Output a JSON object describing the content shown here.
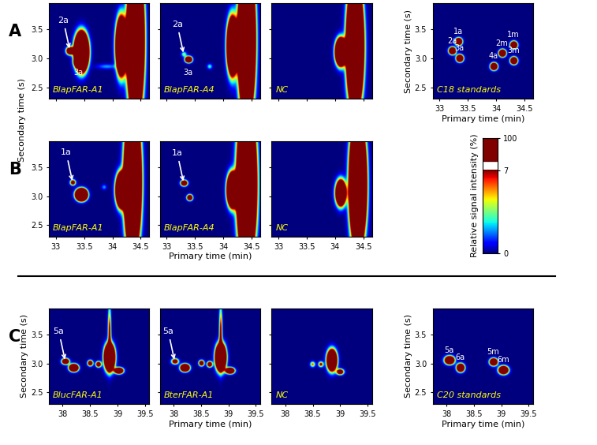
{
  "chart_data": {
    "type": "heatmap",
    "colorbar": {
      "label": "Relative signal intensity (%)",
      "range": [
        0,
        7
      ],
      "ticks": [
        0,
        7,
        100
      ]
    },
    "shared_ylabel": {
      "text": "Secondary time (s)",
      "rows": [
        "A",
        "B"
      ]
    },
    "rows": [
      {
        "label": "A",
        "xlim": [
          32.88,
          34.65
        ],
        "ylim": [
          2.3,
          3.95
        ],
        "xticks": [
          33,
          33.5,
          34,
          34.5
        ],
        "yticks": [
          {
            "value": 2.5,
            "label": "2.5"
          },
          {
            "value": 3,
            "label": "3.0"
          },
          {
            "value": 3.5,
            "label": "3.5"
          }
        ],
        "panels": [
          {
            "label": "BlapFAR-A1",
            "tick_labels": "y",
            "arrows": [
              {
                "text": "2a",
                "x": 33.25,
                "y": 3.13
              }
            ],
            "point_labels": [
              {
                "text": "3a",
                "x": 33.4,
                "y": 2.9
              }
            ],
            "peaks": [
              {
                "x": 33.25,
                "y": 3.12,
                "height": 20,
                "sx": 0.04,
                "sy": 0.04
              },
              {
                "x": 33.45,
                "y": 3.1,
                "height": 100,
                "sx": 0.06,
                "sy": 0.16
              },
              {
                "x": 33.4,
                "y": 2.92,
                "height": 30,
                "sx": 0.04,
                "sy": 0.04
              },
              {
                "x": 33.9,
                "y": 2.85,
                "height": 2,
                "sx": 0.12,
                "sy": 0.03
              },
              {
                "x": 34.15,
                "y": 3.2,
                "height": 60,
                "sx": 0.05,
                "sy": 0.25
              },
              {
                "x": 34.4,
                "y": 3.3,
                "height": 100,
                "sx": 0.07,
                "sy": 0.6
              }
            ]
          },
          {
            "label": "BlapFAR-A4",
            "tick_labels": false,
            "arrows": [
              {
                "text": "2a",
                "x": 33.3,
                "y": 3.06
              }
            ],
            "point_labels": [
              {
                "text": "3a",
                "x": 33.38,
                "y": 2.9
              }
            ],
            "peaks": [
              {
                "x": 33.3,
                "y": 3.06,
                "height": 4,
                "sx": 0.03,
                "sy": 0.03
              },
              {
                "x": 33.38,
                "y": 2.97,
                "height": 30,
                "sx": 0.035,
                "sy": 0.03
              },
              {
                "x": 33.75,
                "y": 2.85,
                "height": 3,
                "sx": 0.03,
                "sy": 0.03
              },
              {
                "x": 34.15,
                "y": 3.2,
                "height": 60,
                "sx": 0.05,
                "sy": 0.25
              },
              {
                "x": 34.4,
                "y": 3.3,
                "height": 100,
                "sx": 0.07,
                "sy": 0.6
              }
            ]
          },
          {
            "label": "NC",
            "tick_labels": false,
            "peaks": [
              {
                "x": 34.1,
                "y": 3.1,
                "height": 60,
                "sx": 0.05,
                "sy": 0.12
              },
              {
                "x": 34.35,
                "y": 3.2,
                "height": 100,
                "sx": 0.07,
                "sy": 0.5
              }
            ]
          },
          {
            "label": "C18 standards",
            "tick_labels": true,
            "xlabel": "Primary time (min)",
            "ylabel": "Secondary time (s)",
            "peaks": [
              {
                "x": 33.33,
                "y": 3.28,
                "height": 30,
                "sx": 0.035,
                "sy": 0.035,
                "label": "1a"
              },
              {
                "x": 33.22,
                "y": 3.12,
                "height": 30,
                "sx": 0.035,
                "sy": 0.035,
                "label": "2a"
              },
              {
                "x": 33.35,
                "y": 2.99,
                "height": 30,
                "sx": 0.035,
                "sy": 0.035,
                "label": "3a"
              },
              {
                "x": 33.95,
                "y": 2.85,
                "height": 30,
                "sx": 0.035,
                "sy": 0.035,
                "label": "4a"
              },
              {
                "x": 34.3,
                "y": 3.22,
                "height": 30,
                "sx": 0.035,
                "sy": 0.035,
                "label": "1m"
              },
              {
                "x": 34.1,
                "y": 3.08,
                "height": 30,
                "sx": 0.035,
                "sy": 0.035,
                "label": "2m"
              },
              {
                "x": 34.3,
                "y": 2.95,
                "height": 30,
                "sx": 0.035,
                "sy": 0.035,
                "label": "3m"
              }
            ]
          }
        ]
      },
      {
        "label": "B",
        "xlim": [
          32.88,
          34.65
        ],
        "ylim": [
          2.3,
          3.95
        ],
        "xticks": [
          33,
          33.5,
          34,
          34.5
        ],
        "yticks": [
          {
            "value": 2.5,
            "label": "2.5"
          },
          {
            "value": 3,
            "label": "3.0"
          },
          {
            "value": 3.5,
            "label": "3.5"
          }
        ],
        "panels": [
          {
            "label": "BlapFAR-A1",
            "tick_labels": true,
            "arrows": [
              {
                "text": "1a",
                "x": 33.3,
                "y": 3.23
              }
            ],
            "peaks": [
              {
                "x": 33.3,
                "y": 3.23,
                "height": 12,
                "sx": 0.03,
                "sy": 0.03
              },
              {
                "x": 33.45,
                "y": 3.02,
                "height": 100,
                "sx": 0.05,
                "sy": 0.05
              },
              {
                "x": 33.85,
                "y": 3.15,
                "height": 2,
                "sx": 0.03,
                "sy": 0.03
              },
              {
                "x": 34.15,
                "y": 3.1,
                "height": 60,
                "sx": 0.05,
                "sy": 0.15
              },
              {
                "x": 34.35,
                "y": 3.25,
                "height": 100,
                "sx": 0.07,
                "sy": 0.55
              }
            ]
          },
          {
            "label": "BlapFAR-A4",
            "tick_labels": "x",
            "xlabel": "Primary time (min)",
            "arrows": [
              {
                "text": "1a",
                "x": 33.3,
                "y": 3.22
              }
            ],
            "peaks": [
              {
                "x": 33.3,
                "y": 3.22,
                "height": 20,
                "sx": 0.035,
                "sy": 0.03
              },
              {
                "x": 33.4,
                "y": 2.97,
                "height": 20,
                "sx": 0.03,
                "sy": 0.03
              },
              {
                "x": 34.15,
                "y": 3.1,
                "height": 60,
                "sx": 0.05,
                "sy": 0.15
              },
              {
                "x": 34.4,
                "y": 3.2,
                "height": 100,
                "sx": 0.08,
                "sy": 0.6
              }
            ]
          },
          {
            "label": "NC",
            "tick_labels": "x",
            "peaks": [
              {
                "x": 34.1,
                "y": 3.05,
                "height": 40,
                "sx": 0.05,
                "sy": 0.12
              },
              {
                "x": 34.4,
                "y": 3.2,
                "height": 100,
                "sx": 0.07,
                "sy": 0.5
              }
            ]
          }
        ]
      },
      {
        "label": "C",
        "xlim": [
          37.75,
          39.58
        ],
        "ylim": [
          2.3,
          3.95
        ],
        "xticks": [
          38,
          38.5,
          39,
          39.5
        ],
        "yticks": [
          {
            "value": 2.5,
            "label": "2.5"
          },
          {
            "value": 3,
            "label": "3.0"
          },
          {
            "value": 3.5,
            "label": "3.5"
          }
        ],
        "panels": [
          {
            "label": "BlucFAR-A1",
            "tick_labels": true,
            "ylabel": "Secondary time (s)",
            "arrows": [
              {
                "text": "5a",
                "x": 38.05,
                "y": 3.03
              }
            ],
            "peaks": [
              {
                "x": 38.05,
                "y": 3.03,
                "height": 20,
                "sx": 0.04,
                "sy": 0.03
              },
              {
                "x": 38.2,
                "y": 2.92,
                "height": 40,
                "sx": 0.045,
                "sy": 0.035
              },
              {
                "x": 38.5,
                "y": 3.0,
                "height": 15,
                "sx": 0.03,
                "sy": 0.03
              },
              {
                "x": 38.65,
                "y": 2.98,
                "height": 15,
                "sx": 0.03,
                "sy": 0.03
              },
              {
                "x": 38.85,
                "y": 3.1,
                "height": 60,
                "sx": 0.05,
                "sy": 0.12
              },
              {
                "x": 38.85,
                "y": 3.5,
                "height": 8,
                "sx": 0.02,
                "sy": 0.3
              },
              {
                "x": 39.02,
                "y": 2.87,
                "height": 30,
                "sx": 0.045,
                "sy": 0.03
              }
            ]
          },
          {
            "label": "BterFAR-A1",
            "tick_labels": "x",
            "xlabel": "Primary time (min)",
            "arrows": [
              {
                "text": "5a",
                "x": 38.02,
                "y": 3.03
              }
            ],
            "peaks": [
              {
                "x": 38.02,
                "y": 3.03,
                "height": 12,
                "sx": 0.04,
                "sy": 0.03
              },
              {
                "x": 38.2,
                "y": 2.92,
                "height": 40,
                "sx": 0.045,
                "sy": 0.035
              },
              {
                "x": 38.5,
                "y": 3.0,
                "height": 15,
                "sx": 0.03,
                "sy": 0.03
              },
              {
                "x": 38.65,
                "y": 2.98,
                "height": 15,
                "sx": 0.03,
                "sy": 0.03
              },
              {
                "x": 38.85,
                "y": 3.1,
                "height": 60,
                "sx": 0.05,
                "sy": 0.12
              },
              {
                "x": 38.85,
                "y": 3.5,
                "height": 8,
                "sx": 0.02,
                "sy": 0.3
              },
              {
                "x": 39.02,
                "y": 2.87,
                "height": 30,
                "sx": 0.045,
                "sy": 0.03
              }
            ]
          },
          {
            "label": "NC",
            "tick_labels": "x",
            "peaks": [
              {
                "x": 38.5,
                "y": 2.98,
                "height": 6,
                "sx": 0.03,
                "sy": 0.03
              },
              {
                "x": 38.65,
                "y": 2.98,
                "height": 8,
                "sx": 0.03,
                "sy": 0.03
              },
              {
                "x": 38.85,
                "y": 3.05,
                "height": 40,
                "sx": 0.05,
                "sy": 0.1
              },
              {
                "x": 39.0,
                "y": 2.85,
                "height": 15,
                "sx": 0.04,
                "sy": 0.03
              }
            ]
          },
          {
            "label": "C20 standards",
            "tick_labels": true,
            "xlabel": "Primary time (min)",
            "ylabel": "Secondary time (s)",
            "peaks": [
              {
                "x": 38.05,
                "y": 3.05,
                "height": 30,
                "sx": 0.05,
                "sy": 0.04,
                "label": "5a"
              },
              {
                "x": 38.25,
                "y": 2.92,
                "height": 30,
                "sx": 0.04,
                "sy": 0.04,
                "label": "6a"
              },
              {
                "x": 38.85,
                "y": 3.02,
                "height": 30,
                "sx": 0.04,
                "sy": 0.035,
                "label": "5m"
              },
              {
                "x": 39.03,
                "y": 2.88,
                "height": 30,
                "sx": 0.05,
                "sy": 0.04,
                "label": "6m"
              }
            ]
          }
        ]
      }
    ]
  }
}
